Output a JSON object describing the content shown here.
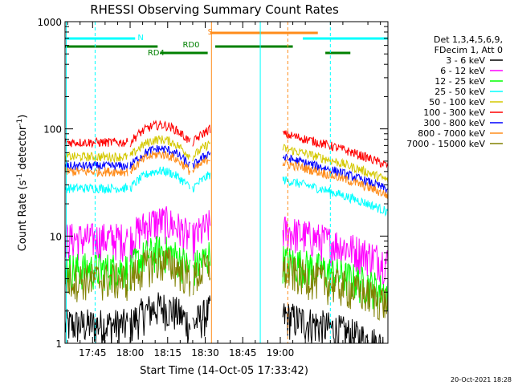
{
  "chart_data": {
    "type": "line",
    "title": "RHESSI Observing Summary Count Rates",
    "xlabel": "Start Time (14-Oct-05 17:33:42)",
    "ylabel_main": "Count Rate (s",
    "ylabel_sup": "-1",
    "ylabel_rest": " detector",
    "ylabel_sup2": "-1",
    "ylabel_end": ")",
    "yscale": "log",
    "ylim": [
      1,
      1000
    ],
    "xlim_min": [
      1054,
      1183
    ],
    "x_ticks": [
      {
        "min": 1065,
        "label": "17:45"
      },
      {
        "min": 1080,
        "label": "18:00"
      },
      {
        "min": 1095,
        "label": "18:15"
      },
      {
        "min": 1110,
        "label": "18:30"
      },
      {
        "min": 1125,
        "label": "18:45"
      },
      {
        "min": 1140,
        "label": "19:00"
      }
    ],
    "y_ticks": [
      {
        "v": 1,
        "label": "1"
      },
      {
        "v": 10,
        "label": "10"
      },
      {
        "v": 100,
        "label": "100"
      },
      {
        "v": 1000,
        "label": "1000"
      }
    ],
    "legend_header": [
      "Det 1,3,4,5,6,9,",
      "FDecim 1, Att 0"
    ],
    "legend_placement": "right",
    "series": [
      {
        "name": "3 - 6 keV",
        "color": "#000000",
        "base": 1.5
      },
      {
        "name": "6 - 12 keV",
        "color": "#ff00ff",
        "base": 9.5
      },
      {
        "name": "12 - 25 keV",
        "color": "#00ff00",
        "base": 5
      },
      {
        "name": "25 - 50 keV",
        "color": "#00ffff",
        "base": 28
      },
      {
        "name": "50 - 100 keV",
        "color": "#d4c800",
        "base": 55
      },
      {
        "name": "100 - 300 keV",
        "color": "#ff0000",
        "base": 75
      },
      {
        "name": "300 - 800 keV",
        "color": "#0000ff",
        "base": 45
      },
      {
        "name": "800 - 7000 keV",
        "color": "#ff8c1a",
        "base": 40
      },
      {
        "name": "7000 - 15000 keV",
        "color": "#808000",
        "base": 4
      }
    ],
    "bar_labels": [
      {
        "label": "N",
        "color": "#00ffff"
      },
      {
        "label": "S",
        "color": "#ff8c1a"
      },
      {
        "label": "RD0",
        "color": "#008000"
      },
      {
        "label": "RD4",
        "color": "#008000"
      }
    ],
    "footer_date": "20-Oct-2021 18:28"
  }
}
